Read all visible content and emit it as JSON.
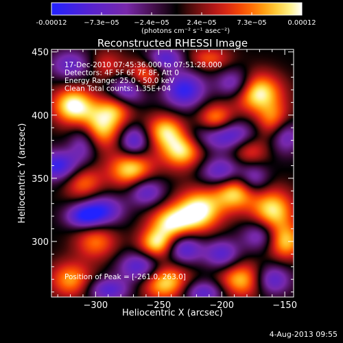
{
  "colorbar": {
    "tick_labels": [
      "-0.00012",
      "−7.3e−05",
      "−2.4e−05",
      "2.4e−05",
      "7.3e−05",
      "0.00012"
    ],
    "unit_line": "(photons cm⁻² s⁻¹ asec⁻²)",
    "range": [
      -0.00012,
      0.00012
    ]
  },
  "chart_data": {
    "type": "heatmap",
    "title": "Reconstructed RHESSI Image",
    "xlabel": "Heliocentric X (arcsec)",
    "ylabel": "Heliocentric Y (arcsec)",
    "xlim": [
      -335,
      -143
    ],
    "ylim": [
      256,
      452
    ],
    "x_ticks": [
      -300,
      -250,
      -200,
      -150
    ],
    "y_ticks": [
      300,
      350,
      400,
      450
    ],
    "x_tick_labels": [
      "−300",
      "−250",
      "−200",
      "−150"
    ],
    "y_tick_labels": [
      "300",
      "350",
      "400",
      "450"
    ],
    "colormap": "RHESSI red-temperature (blue-purple negative to red-yellow-white positive)",
    "colors": [
      "#2222ff",
      "#5a22cc",
      "#7a1fa0",
      "#000000",
      "#6a1010",
      "#cc1a1a",
      "#ff5a00",
      "#ffaa10",
      "#ffee60",
      "#ffffff"
    ],
    "annotations": [
      "17-Dec-2010 07:45:36.000 to 07:51:28.000",
      "Detectors: 4F 5F 6F 7F 8F, Att 0",
      "Energy Range: 25.0 - 50.0 keV",
      "Clean    Total counts: 1.35E+04"
    ],
    "peak_label": "Position of Peak = [-261.0, ",
    "peak_obscured": "263.0]"
  },
  "timestamp": "4-Aug-2013 09:55"
}
